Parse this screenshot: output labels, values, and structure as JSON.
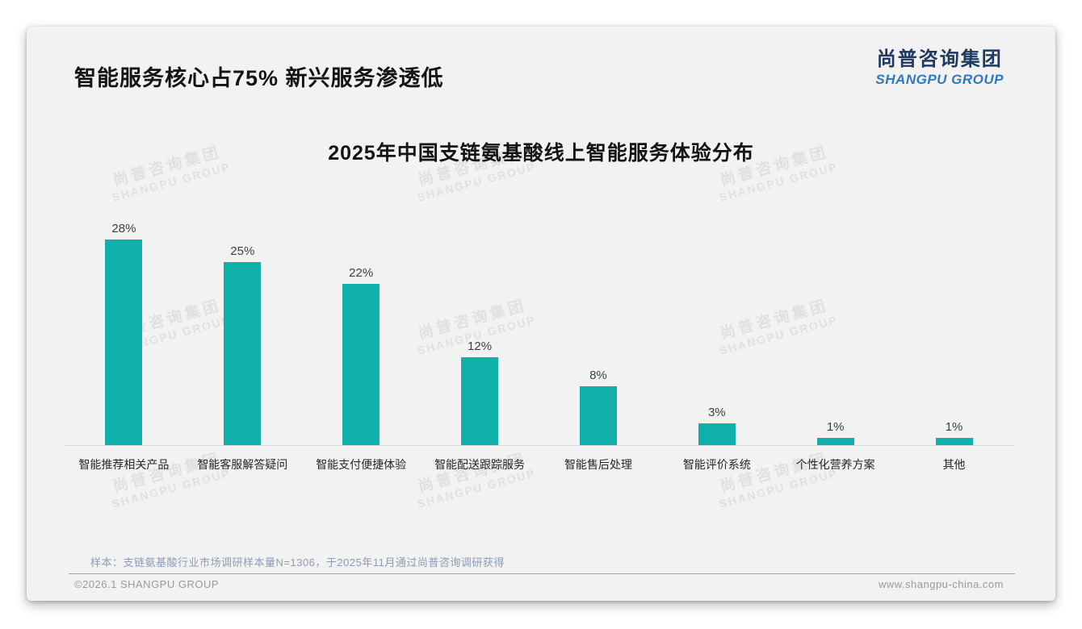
{
  "header": {
    "title": "智能服务核心占75% 新兴服务渗透低",
    "logo": {
      "chinese": "尚普咨询集团",
      "english": "SHANGPU GROUP",
      "chinese_color": "#1e3a60",
      "english_color": "#2e7abf"
    }
  },
  "chart_data": {
    "type": "bar",
    "title": "2025年中国支链氨基酸线上智能服务体验分布",
    "categories": [
      "智能推荐相关产品",
      "智能客服解答疑问",
      "智能支付便捷体验",
      "智能配送跟踪服务",
      "智能售后处理",
      "智能评价系统",
      "个性化营养方案",
      "其他"
    ],
    "values": [
      28,
      25,
      22,
      12,
      8,
      3,
      1,
      1
    ],
    "value_labels": [
      "28%",
      "25%",
      "22%",
      "12%",
      "8%",
      "3%",
      "1%",
      "1%"
    ],
    "unit": "%",
    "bar_color": "#0fb0a9",
    "ylim": [
      0,
      30
    ],
    "grid": false,
    "legend": "none",
    "xlabel": "",
    "ylabel": ""
  },
  "watermark": {
    "line1": "尚普咨询集团",
    "line2": "SHANGPU GROUP"
  },
  "footer": {
    "note": "样本：支链氨基酸行业市场调研样本量N=1306，于2025年11月通过尚普咨询调研获得",
    "copyright": "©2026.1 SHANGPU GROUP",
    "website": "www.shangpu-china.com"
  }
}
